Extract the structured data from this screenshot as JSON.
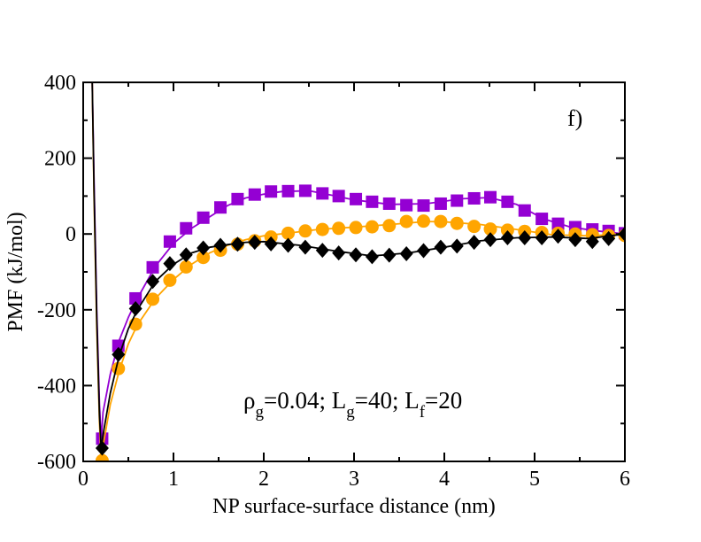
{
  "chart_data": {
    "type": "scatter",
    "title": "",
    "panel_label": "f)",
    "xlabel": "NP surface-surface distance (nm)",
    "ylabel": "PMF (kJ/mol)",
    "xlim": [
      0,
      6
    ],
    "ylim": [
      -600,
      400
    ],
    "xticks": [
      0,
      1,
      2,
      3,
      4,
      5,
      6
    ],
    "yticks": [
      -600,
      -400,
      -200,
      0,
      200,
      400
    ],
    "grid": false,
    "annotation": {
      "rho": "ρ",
      "rho_sub": "g",
      "rho_val": "=0.04; L",
      "lg_sub": "g",
      "lg_val": "=40; L",
      "lf_sub": "f",
      "lf_val": "=20"
    },
    "series": [
      {
        "name": "purple squares",
        "color": "#9400d3",
        "marker": "square",
        "curve": {
          "x": [
            0.1,
            0.12,
            0.15,
            0.18,
            0.2,
            0.22,
            0.3,
            0.4,
            0.5,
            0.6,
            0.8,
            1.0,
            1.2,
            1.4,
            1.6,
            1.8,
            2.0,
            2.2,
            2.5,
            2.8,
            3.0,
            3.4,
            3.8,
            4.2,
            4.5,
            4.8,
            5.1,
            5.4,
            5.7,
            6.0
          ],
          "y": [
            400,
            150,
            -200,
            -450,
            -545,
            -470,
            -370,
            -280,
            -220,
            -170,
            -85,
            -25,
            15,
            45,
            75,
            95,
            105,
            112,
            114,
            100,
            90,
            78,
            80,
            93,
            96,
            78,
            40,
            18,
            8,
            0
          ]
        },
        "x": [
          0.21,
          0.39,
          0.58,
          0.77,
          0.96,
          1.14,
          1.33,
          1.52,
          1.71,
          1.9,
          2.08,
          2.27,
          2.46,
          2.65,
          2.83,
          3.02,
          3.2,
          3.39,
          3.58,
          3.77,
          3.96,
          4.14,
          4.33,
          4.51,
          4.7,
          4.89,
          5.08,
          5.26,
          5.45,
          5.64,
          5.82,
          6.0
        ],
        "y": [
          -540,
          -295,
          -170,
          -88,
          -20,
          15,
          43,
          70,
          92,
          104,
          112,
          113,
          114,
          107,
          100,
          92,
          85,
          80,
          76,
          75,
          80,
          88,
          94,
          97,
          85,
          62,
          40,
          27,
          18,
          12,
          8,
          2
        ]
      },
      {
        "name": "orange circles",
        "color": "#ffa500",
        "marker": "circle",
        "curve": {
          "x": [
            0.1,
            0.12,
            0.15,
            0.18,
            0.2,
            0.22,
            0.3,
            0.4,
            0.5,
            0.6,
            0.8,
            1.0,
            1.2,
            1.4,
            1.6,
            1.8,
            2.0,
            2.3,
            2.6,
            3.0,
            3.4,
            3.8,
            4.0,
            4.4,
            4.8,
            5.2,
            5.6,
            6.0
          ],
          "y": [
            400,
            100,
            -250,
            -500,
            -598,
            -560,
            -450,
            -360,
            -290,
            -240,
            -170,
            -120,
            -80,
            -50,
            -30,
            -15,
            -5,
            3,
            12,
            18,
            25,
            33,
            32,
            25,
            12,
            -2,
            -5,
            0
          ]
        },
        "x": [
          0.21,
          0.39,
          0.58,
          0.77,
          0.96,
          1.14,
          1.33,
          1.52,
          1.71,
          1.9,
          2.08,
          2.27,
          2.46,
          2.65,
          2.83,
          3.02,
          3.2,
          3.39,
          3.58,
          3.77,
          3.96,
          4.14,
          4.33,
          4.51,
          4.7,
          4.89,
          5.08,
          5.26,
          5.45,
          5.64,
          5.82,
          6.0
        ],
        "y": [
          -598,
          -355,
          -238,
          -172,
          -122,
          -87,
          -62,
          -43,
          -27,
          -18,
          -8,
          2,
          8,
          12,
          15,
          17,
          19,
          22,
          33,
          34,
          33,
          28,
          20,
          13,
          10,
          7,
          4,
          2,
          0,
          -2,
          -4,
          -4
        ]
      },
      {
        "name": "black diamonds",
        "color": "#000000",
        "marker": "diamond",
        "curve": {
          "x": [
            0.1,
            0.12,
            0.15,
            0.18,
            0.2,
            0.22,
            0.3,
            0.4,
            0.5,
            0.6,
            0.8,
            1.0,
            1.2,
            1.4,
            1.6,
            1.8,
            2.0,
            2.4,
            2.8,
            3.2,
            3.6,
            4.0,
            4.4,
            4.8,
            5.2,
            5.6,
            6.0
          ],
          "y": [
            400,
            120,
            -220,
            -480,
            -570,
            -530,
            -420,
            -320,
            -250,
            -200,
            -125,
            -80,
            -50,
            -35,
            -28,
            -22,
            -20,
            -30,
            -45,
            -58,
            -50,
            -35,
            -18,
            -10,
            -8,
            -12,
            0
          ]
        },
        "x": [
          0.21,
          0.39,
          0.58,
          0.77,
          0.96,
          1.14,
          1.33,
          1.52,
          1.71,
          1.9,
          2.08,
          2.27,
          2.46,
          2.65,
          2.83,
          3.02,
          3.2,
          3.39,
          3.58,
          3.77,
          3.96,
          4.14,
          4.33,
          4.51,
          4.7,
          4.89,
          5.08,
          5.26,
          5.45,
          5.64,
          5.82,
          6.0
        ],
        "y": [
          -565,
          -318,
          -197,
          -125,
          -78,
          -55,
          -37,
          -30,
          -27,
          -22,
          -26,
          -30,
          -35,
          -43,
          -50,
          -55,
          -60,
          -56,
          -52,
          -44,
          -35,
          -32,
          -22,
          -15,
          -10,
          -10,
          -10,
          -6,
          -15,
          -20,
          -12,
          0
        ]
      }
    ]
  }
}
